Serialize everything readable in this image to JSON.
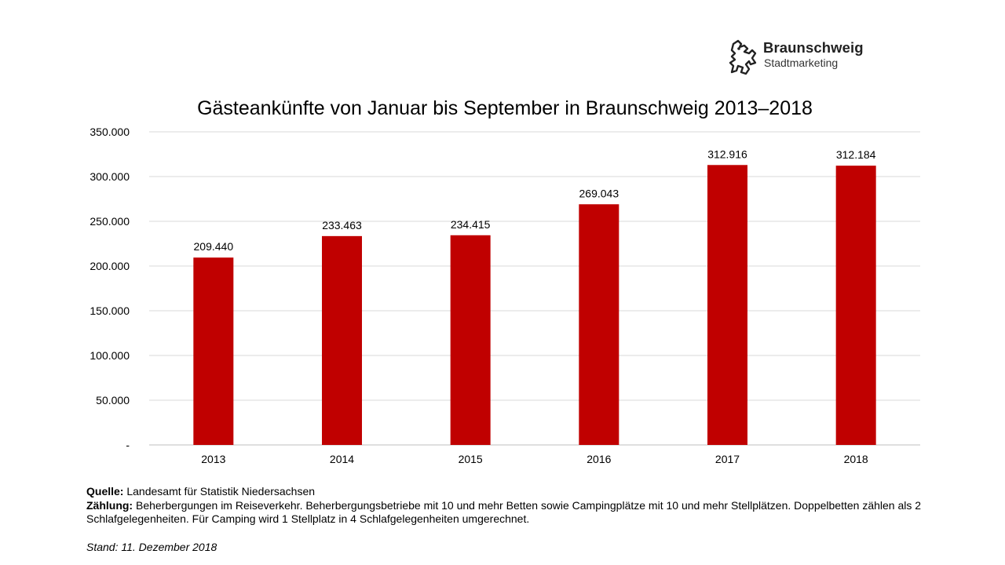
{
  "logo": {
    "name": "Braunschweig",
    "subtitle": "Stadtmarketing"
  },
  "chart_data": {
    "type": "bar",
    "title": "Gästeankünfte von Januar bis September in Braunschweig 2013–2018",
    "categories": [
      "2013",
      "2014",
      "2015",
      "2016",
      "2017",
      "2018"
    ],
    "values": [
      209440,
      233463,
      234415,
      269043,
      312916,
      312184
    ],
    "value_labels": [
      "209.440",
      "233.463",
      "234.415",
      "269.043",
      "312.916",
      "312.184"
    ],
    "ylim": [
      0,
      350000
    ],
    "yticks": [
      0,
      50000,
      100000,
      150000,
      200000,
      250000,
      300000,
      350000
    ],
    "ytick_labels": [
      "-",
      "50.000",
      "100.000",
      "150.000",
      "200.000",
      "250.000",
      "300.000",
      "350.000"
    ],
    "xlabel": "",
    "ylabel": "",
    "grid": true,
    "bar_color": "#C00000"
  },
  "notes": {
    "source_label": "Quelle:",
    "source_text": " Landesamt für Statistik Niedersachsen",
    "count_label": "Zählung:",
    "count_text": " Beherbergungen im Reiseverkehr. Beherbergungsbetriebe mit 10 und mehr Betten sowie Campingplätze mit 10 und mehr Stellplätzen. Doppelbetten zählen als 2 Schlafgelegenheiten. Für Camping wird 1 Stellplatz in 4 Schlafgelegenheiten umgerechnet.",
    "stand": "Stand: 11. Dezember 2018"
  }
}
